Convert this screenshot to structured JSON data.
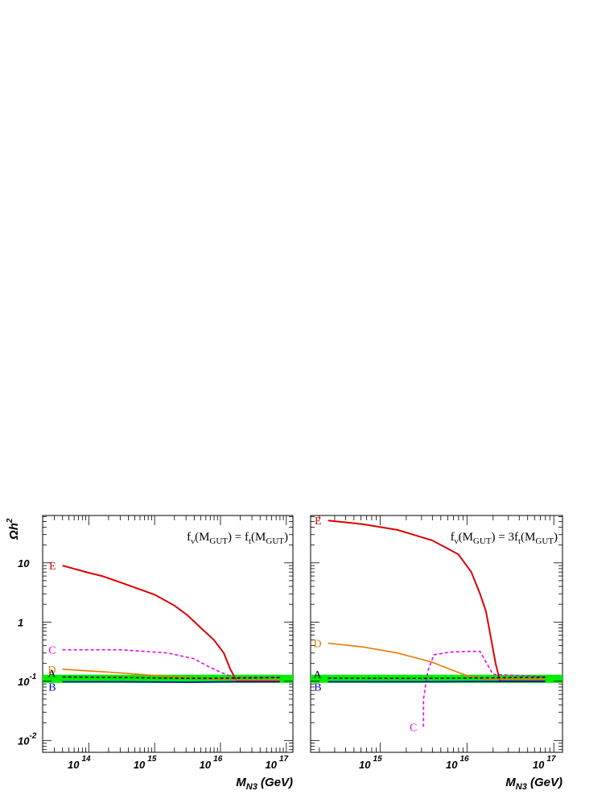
{
  "chart_data": [
    {
      "type": "line",
      "panel": "left",
      "annotation": {
        "main": "f",
        "nu": "ν",
        "paren1": "(M",
        "gut1": "GUT",
        "mid": ") = f",
        "t": "t",
        "paren2": "(M",
        "gut2": "GUT",
        "close": ")"
      },
      "xlabel": {
        "M": "M",
        "sub": "N3",
        "unit": " (GeV)"
      },
      "ylabel": {
        "omega": "Ω",
        "h": "h",
        "sup": "2"
      },
      "x_scale": "log",
      "y_scale": "log",
      "xlim_log10": [
        13.3,
        17.1
      ],
      "ylim_log10": [
        -2.2,
        1.8
      ],
      "x_ticks": [
        {
          "base": "10",
          "exp": "14",
          "v": 14
        },
        {
          "base": "10",
          "exp": "15",
          "v": 15
        },
        {
          "base": "10",
          "exp": "16",
          "v": 16
        },
        {
          "base": "10",
          "exp": "17",
          "v": 17
        }
      ],
      "y_ticks": [
        {
          "base": "10",
          "exp": "",
          "v": 1
        },
        {
          "base": "1",
          "exp": "",
          "v": 0
        },
        {
          "base": "10",
          "exp": "-1",
          "v": -1
        },
        {
          "base": "10",
          "exp": "-2",
          "v": -2
        }
      ],
      "band": {
        "ylow": 0.094,
        "yhigh": 0.129,
        "color": "#00ee00"
      },
      "series": [
        {
          "name": "E",
          "color": "#dd0000",
          "dash": false,
          "label_side": "left",
          "points": [
            [
              13.6,
              9.0
            ],
            [
              14.0,
              6.8
            ],
            [
              14.2,
              6.0
            ],
            [
              14.5,
              4.6
            ],
            [
              15.0,
              2.9
            ],
            [
              15.3,
              1.9
            ],
            [
              15.5,
              1.3
            ],
            [
              15.7,
              0.8
            ],
            [
              15.9,
              0.5
            ],
            [
              16.05,
              0.3
            ],
            [
              16.15,
              0.16
            ],
            [
              16.25,
              0.1
            ],
            [
              16.5,
              0.1
            ],
            [
              16.9,
              0.1
            ]
          ]
        },
        {
          "name": "C",
          "color": "#ee00ee",
          "dash": true,
          "label_side": "left",
          "points": [
            [
              13.6,
              0.34
            ],
            [
              14.5,
              0.34
            ],
            [
              15.2,
              0.3
            ],
            [
              15.6,
              0.24
            ],
            [
              15.85,
              0.17
            ],
            [
              16.05,
              0.135
            ],
            [
              16.2,
              0.115
            ],
            [
              16.9,
              0.115
            ]
          ]
        },
        {
          "name": "D",
          "color": "#ee7700",
          "dash": false,
          "label_side": "left",
          "points": [
            [
              13.6,
              0.16
            ],
            [
              14.0,
              0.15
            ],
            [
              14.5,
              0.138
            ],
            [
              15.0,
              0.125
            ],
            [
              15.5,
              0.115
            ],
            [
              16.0,
              0.108
            ],
            [
              16.2,
              0.105
            ],
            [
              16.9,
              0.105
            ]
          ]
        },
        {
          "name": "A",
          "color": "#000000",
          "dash": true,
          "label_side": "left",
          "points": [
            [
              13.6,
              0.118
            ],
            [
              14.5,
              0.116
            ],
            [
              15.5,
              0.112
            ],
            [
              16.2,
              0.113
            ],
            [
              16.9,
              0.116
            ]
          ]
        },
        {
          "name": "B",
          "color": "#0000cc",
          "dash": false,
          "label_side": "left",
          "points": [
            [
              13.6,
              0.098
            ],
            [
              14.5,
              0.098
            ],
            [
              15.5,
              0.096
            ],
            [
              16.2,
              0.098
            ],
            [
              16.9,
              0.098
            ]
          ]
        }
      ]
    },
    {
      "type": "line",
      "panel": "right",
      "annotation": {
        "main": "f",
        "nu": "ν",
        "paren1": "(M",
        "gut1": "GUT",
        "mid": ") = 3f",
        "t": "t",
        "paren2": "(M",
        "gut2": "GUT",
        "close": ")"
      },
      "xlabel": {
        "M": "M",
        "sub": "N3",
        "unit": " (GeV)"
      },
      "x_scale": "log",
      "y_scale": "log",
      "xlim_log10": [
        14.2,
        17.1
      ],
      "ylim_log10": [
        -2.2,
        1.8
      ],
      "x_ticks": [
        {
          "base": "10",
          "exp": "15",
          "v": 15
        },
        {
          "base": "10",
          "exp": "16",
          "v": 16
        },
        {
          "base": "10",
          "exp": "17",
          "v": 17
        }
      ],
      "band": {
        "ylow": 0.094,
        "yhigh": 0.129,
        "color": "#00ee00"
      },
      "series": [
        {
          "name": "E",
          "color": "#dd0000",
          "dash": false,
          "label_side": "left",
          "points": [
            [
              14.4,
              52
            ],
            [
              14.8,
              45
            ],
            [
              15.2,
              36
            ],
            [
              15.6,
              24
            ],
            [
              15.9,
              14
            ],
            [
              16.05,
              7
            ],
            [
              16.15,
              3
            ],
            [
              16.22,
              1.5
            ],
            [
              16.28,
              0.5
            ],
            [
              16.33,
              0.2
            ],
            [
              16.38,
              0.1
            ],
            [
              16.6,
              0.1
            ],
            [
              16.9,
              0.1
            ]
          ]
        },
        {
          "name": "D",
          "color": "#ee7700",
          "dash": false,
          "label_side": "left",
          "points": [
            [
              14.4,
              0.44
            ],
            [
              14.8,
              0.38
            ],
            [
              15.2,
              0.3
            ],
            [
              15.6,
              0.21
            ],
            [
              15.8,
              0.16
            ],
            [
              16.0,
              0.125
            ],
            [
              16.2,
              0.11
            ],
            [
              16.9,
              0.108
            ]
          ]
        },
        {
          "name": "C",
          "color": "#ee00ee",
          "dash": true,
          "label_side": "left",
          "points": [
            [
              15.5,
              0.017
            ],
            [
              15.5,
              0.05
            ],
            [
              15.55,
              0.15
            ],
            [
              15.62,
              0.28
            ],
            [
              15.8,
              0.31
            ],
            [
              16.0,
              0.32
            ],
            [
              16.15,
              0.32
            ],
            [
              16.3,
              0.13
            ],
            [
              16.9,
              0.12
            ]
          ]
        },
        {
          "name": "A",
          "color": "#000000",
          "dash": true,
          "label_side": "left",
          "points": [
            [
              14.4,
              0.113
            ],
            [
              15.5,
              0.112
            ],
            [
              16.2,
              0.114
            ],
            [
              16.9,
              0.117
            ]
          ]
        },
        {
          "name": "B",
          "color": "#0000cc",
          "dash": false,
          "label_side": "left",
          "points": [
            [
              14.4,
              0.098
            ],
            [
              15.5,
              0.098
            ],
            [
              16.2,
              0.099
            ],
            [
              16.9,
              0.099
            ]
          ]
        }
      ]
    }
  ]
}
